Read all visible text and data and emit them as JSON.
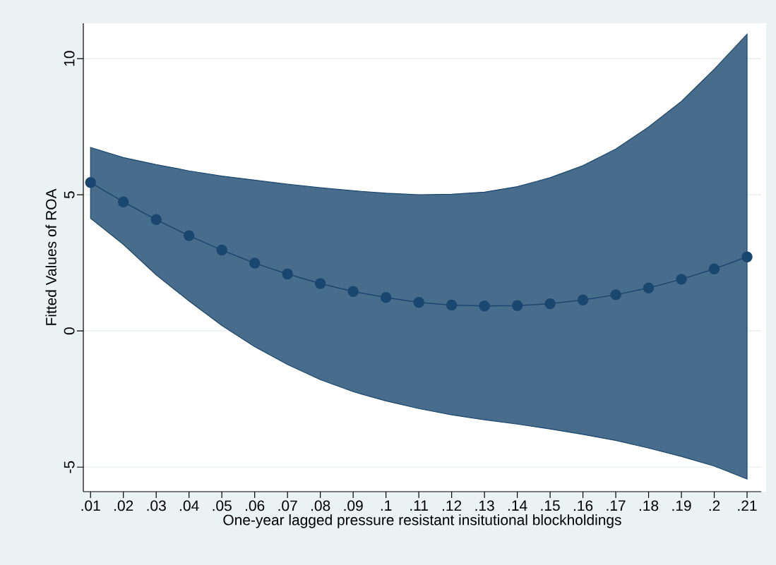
{
  "chart_data": {
    "type": "line",
    "xlabel": "One-year lagged pressure resistant insitutional blockholdings",
    "ylabel": "Fitted Values of ROA",
    "x": [
      0.01,
      0.02,
      0.03,
      0.04,
      0.05,
      0.06,
      0.07,
      0.08,
      0.09,
      0.1,
      0.11,
      0.12,
      0.13,
      0.14,
      0.15,
      0.16,
      0.17,
      0.18,
      0.19,
      0.2,
      0.21
    ],
    "series": [
      {
        "color": "#1a476f",
        "values": [
          5.45,
          4.74,
          4.09,
          3.5,
          2.97,
          2.49,
          2.09,
          1.74,
          1.45,
          1.23,
          1.05,
          0.95,
          0.92,
          0.93,
          1.0,
          1.14,
          1.33,
          1.58,
          1.9,
          2.28,
          2.72
        ],
        "upper": [
          6.74,
          6.37,
          6.11,
          5.88,
          5.69,
          5.54,
          5.39,
          5.26,
          5.15,
          5.06,
          5.0,
          5.02,
          5.1,
          5.3,
          5.63,
          6.07,
          6.68,
          7.49,
          8.43,
          9.61,
          10.9
        ],
        "lower": [
          4.14,
          3.18,
          2.06,
          1.1,
          0.2,
          -0.58,
          -1.23,
          -1.79,
          -2.23,
          -2.57,
          -2.85,
          -3.08,
          -3.26,
          -3.42,
          -3.6,
          -3.8,
          -4.02,
          -4.3,
          -4.61,
          -4.96,
          -5.44
        ]
      }
    ],
    "xlim": [
      0.0078,
      0.2143
    ],
    "ylim": [
      -5.9,
      11.3
    ],
    "xticks": [
      {
        "value": 0.01,
        "label": ".01"
      },
      {
        "value": 0.02,
        "label": ".02"
      },
      {
        "value": 0.03,
        "label": ".03"
      },
      {
        "value": 0.04,
        "label": ".04"
      },
      {
        "value": 0.05,
        "label": ".05"
      },
      {
        "value": 0.06,
        "label": ".06"
      },
      {
        "value": 0.07,
        "label": ".07"
      },
      {
        "value": 0.08,
        "label": ".08"
      },
      {
        "value": 0.09,
        "label": ".09"
      },
      {
        "value": 0.1,
        "label": ".1"
      },
      {
        "value": 0.11,
        "label": ".11"
      },
      {
        "value": 0.12,
        "label": ".12"
      },
      {
        "value": 0.13,
        "label": ".13"
      },
      {
        "value": 0.14,
        "label": ".14"
      },
      {
        "value": 0.15,
        "label": ".15"
      },
      {
        "value": 0.16,
        "label": ".16"
      },
      {
        "value": 0.17,
        "label": ".17"
      },
      {
        "value": 0.18,
        "label": ".18"
      },
      {
        "value": 0.19,
        "label": ".19"
      },
      {
        "value": 0.2,
        "label": ".2"
      },
      {
        "value": 0.21,
        "label": ".21"
      }
    ],
    "yticks": [
      -5,
      0,
      5,
      10
    ],
    "grid": "y",
    "marker": "circle",
    "line_style": "solid"
  }
}
